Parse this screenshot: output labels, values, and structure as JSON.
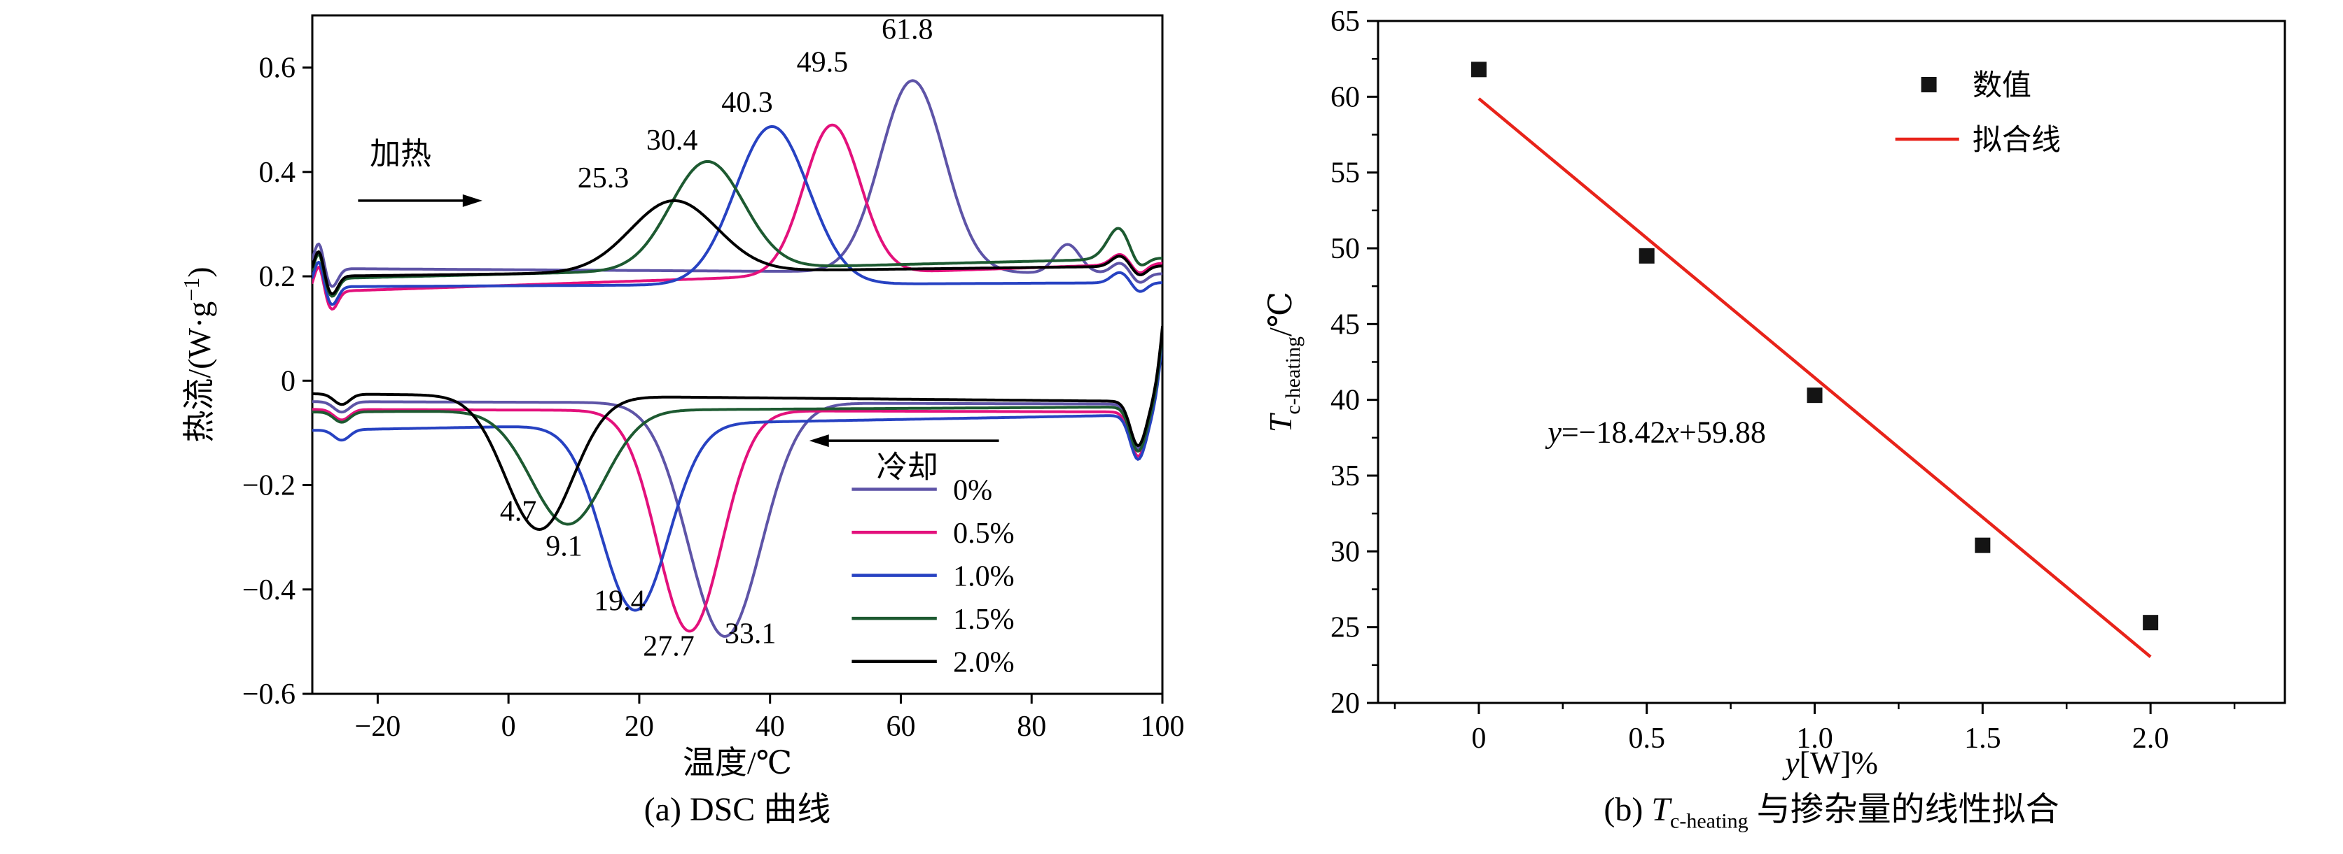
{
  "page": {
    "background": "#ffffff"
  },
  "captions": {
    "a": "(a) DSC 曲线",
    "b_prefix": "(b) ",
    "b_T": "T",
    "b_sub": "c-heating",
    "b_rest": " 与掺杂量的线性拟合"
  },
  "chart_data": [
    {
      "id": "dsc-curves",
      "type": "line",
      "panel": "a",
      "xlabel": "温度/℃",
      "ylabel": "热流/(W·g−1)",
      "ylabel_parts": {
        "pre": "热流/(W·g",
        "sup": "−1",
        "post": ")"
      },
      "xlim": [
        -30,
        100
      ],
      "ylim": [
        -0.6,
        0.7
      ],
      "xticks": [
        -20,
        0,
        20,
        40,
        60,
        80,
        100
      ],
      "yticks": [
        -0.6,
        -0.4,
        -0.2,
        0,
        0.2,
        0.4,
        0.6
      ],
      "grid": false,
      "direction_labels": {
        "heating": {
          "text": "加热",
          "x": -16.5,
          "y": 0.415,
          "arrow": {
            "from": -23,
            "to": -4,
            "y": 0.345
          }
        },
        "cooling": {
          "text": "冷却",
          "x": 61,
          "y": -0.185,
          "arrow": {
            "from": 75,
            "to": 46,
            "y": -0.115
          }
        }
      },
      "heating_peak_labels": [
        {
          "text": "25.3",
          "x": 14.5,
          "y": 0.37
        },
        {
          "text": "30.4",
          "x": 25,
          "y": 0.443
        },
        {
          "text": "40.3",
          "x": 36.5,
          "y": 0.515
        },
        {
          "text": "49.5",
          "x": 48,
          "y": 0.592
        },
        {
          "text": "61.8",
          "x": 61,
          "y": 0.655
        }
      ],
      "cooling_valley_labels": [
        {
          "text": "4.7",
          "x": 1.5,
          "y": -0.268
        },
        {
          "text": "9.1",
          "x": 8.5,
          "y": -0.335
        },
        {
          "text": "19.4",
          "x": 17,
          "y": -0.44
        },
        {
          "text": "27.7",
          "x": 24.5,
          "y": -0.527
        },
        {
          "text": "33.1",
          "x": 37,
          "y": -0.503
        }
      ],
      "series": [
        {
          "name": "0%",
          "color": "#5e54a7",
          "heating": {
            "peak_t": 61.8,
            "apex": 0.575,
            "base_left": 0.215,
            "base_right": 0.205,
            "sigma": 4.9,
            "bump": {
              "x": 85.5,
              "h": 0.055,
              "w": 1.9
            }
          },
          "cooling": {
            "valley_t": 33.1,
            "bottom": -0.49,
            "base_left": -0.04,
            "base_right": -0.045,
            "sigma": 5.6
          }
        },
        {
          "name": "0.5%",
          "color": "#e3117c",
          "heating": {
            "peak_t": 49.5,
            "apex": 0.49,
            "base_left": 0.17,
            "base_right": 0.225,
            "sigma": 4.3,
            "bump": null
          },
          "cooling": {
            "valley_t": 27.7,
            "bottom": -0.48,
            "base_left": -0.055,
            "base_right": -0.06,
            "sigma": 4.9
          }
        },
        {
          "name": "1.0%",
          "color": "#2742c2",
          "heating": {
            "peak_t": 40.3,
            "apex": 0.487,
            "base_left": 0.18,
            "base_right": 0.188,
            "sigma": 5.6,
            "bump": null
          },
          "cooling": {
            "valley_t": 19.4,
            "bottom": -0.44,
            "base_left": -0.095,
            "base_right": -0.065,
            "sigma": 5.1
          }
        },
        {
          "name": "1.5%",
          "color": "#1d5a31",
          "heating": {
            "peak_t": 30.4,
            "apex": 0.42,
            "base_left": 0.195,
            "base_right": 0.235,
            "sigma": 5.6,
            "bump": {
              "x": 93,
              "h": 0.04,
              "w": 1.8
            }
          },
          "cooling": {
            "valley_t": 9.1,
            "bottom": -0.275,
            "base_left": -0.06,
            "base_right": -0.05,
            "sigma": 5.6
          }
        },
        {
          "name": "2.0%",
          "color": "#000000",
          "heating": {
            "peak_t": 25.3,
            "apex": 0.345,
            "base_left": 0.2,
            "base_right": 0.22,
            "sigma": 6.6,
            "bump": null
          },
          "cooling": {
            "valley_t": 4.7,
            "bottom": -0.285,
            "base_left": -0.025,
            "base_right": -0.04,
            "sigma": 5.2
          }
        }
      ],
      "legend": {
        "entries": [
          "0%",
          "0.5%",
          "1.0%",
          "1.5%",
          "2.0%"
        ],
        "x_line_start": 52.5,
        "x_line_end": 65.5,
        "x_label": 68,
        "y_first": -0.208,
        "y_step": -0.0825
      }
    },
    {
      "id": "tc-heating-linear-fit",
      "type": "scatter",
      "panel": "b",
      "xlabel_parts": {
        "it": "y",
        "rest": "[W]%"
      },
      "ylabel_parts": {
        "it": "T",
        "sub": "c-heating",
        "rest": "/℃"
      },
      "xlim": [
        -0.3,
        2.4
      ],
      "ylim": [
        20,
        65
      ],
      "xticks": [
        0,
        0.5,
        1,
        1.5,
        2
      ],
      "xtick_labels": [
        "0",
        "0.5",
        "1.0",
        "1.5",
        "2.0"
      ],
      "yticks": [
        20,
        25,
        30,
        35,
        40,
        45,
        50,
        55,
        60,
        65
      ],
      "minor_xstep": 0.25,
      "minor_ystep": 2.5,
      "points": [
        {
          "x": 0,
          "y": 61.8
        },
        {
          "x": 0.5,
          "y": 49.5
        },
        {
          "x": 1.0,
          "y": 40.3
        },
        {
          "x": 1.5,
          "y": 30.4
        },
        {
          "x": 2.0,
          "y": 25.3
        }
      ],
      "marker_color": "#141414",
      "fit_line": {
        "slope": -18.42,
        "intercept": 59.88,
        "x_start": 0,
        "x_end": 2.0,
        "color": "#e8231a"
      },
      "equation": {
        "text": "y=−18.42x+59.88",
        "x": 0.53,
        "y": 37.2
      },
      "legend": {
        "marker_label": "数值",
        "line_label": "拟合线",
        "marker_x": 1.34,
        "line_x1": 1.24,
        "line_x2": 1.43,
        "label_x": 1.47,
        "row1_y": 60.8,
        "row2_y": 57.2
      }
    }
  ]
}
